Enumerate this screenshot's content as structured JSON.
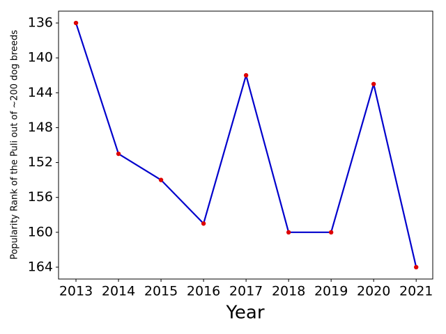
{
  "chart_data": {
    "type": "line",
    "x": [
      2013,
      2014,
      2015,
      2016,
      2017,
      2018,
      2019,
      2020,
      2021
    ],
    "series": [
      {
        "name": "Puli",
        "color": "#0000cc",
        "marker_color": "#dd0000",
        "values": [
          136,
          151,
          154,
          159,
          142,
          160,
          160,
          143,
          164
        ]
      }
    ],
    "xlabel": "Year",
    "ylabel": "Popularity Rank of the Puli out of ~200 dog breeds",
    "xlim": [
      2012.59,
      2021.39
    ],
    "xticks": [
      2013,
      2014,
      2015,
      2016,
      2017,
      2018,
      2019,
      2020,
      2021
    ],
    "ylim": [
      165.36,
      134.64
    ],
    "yticks": [
      136,
      140,
      144,
      148,
      152,
      156,
      160,
      164
    ],
    "y_inverted": true,
    "grid": false
  }
}
